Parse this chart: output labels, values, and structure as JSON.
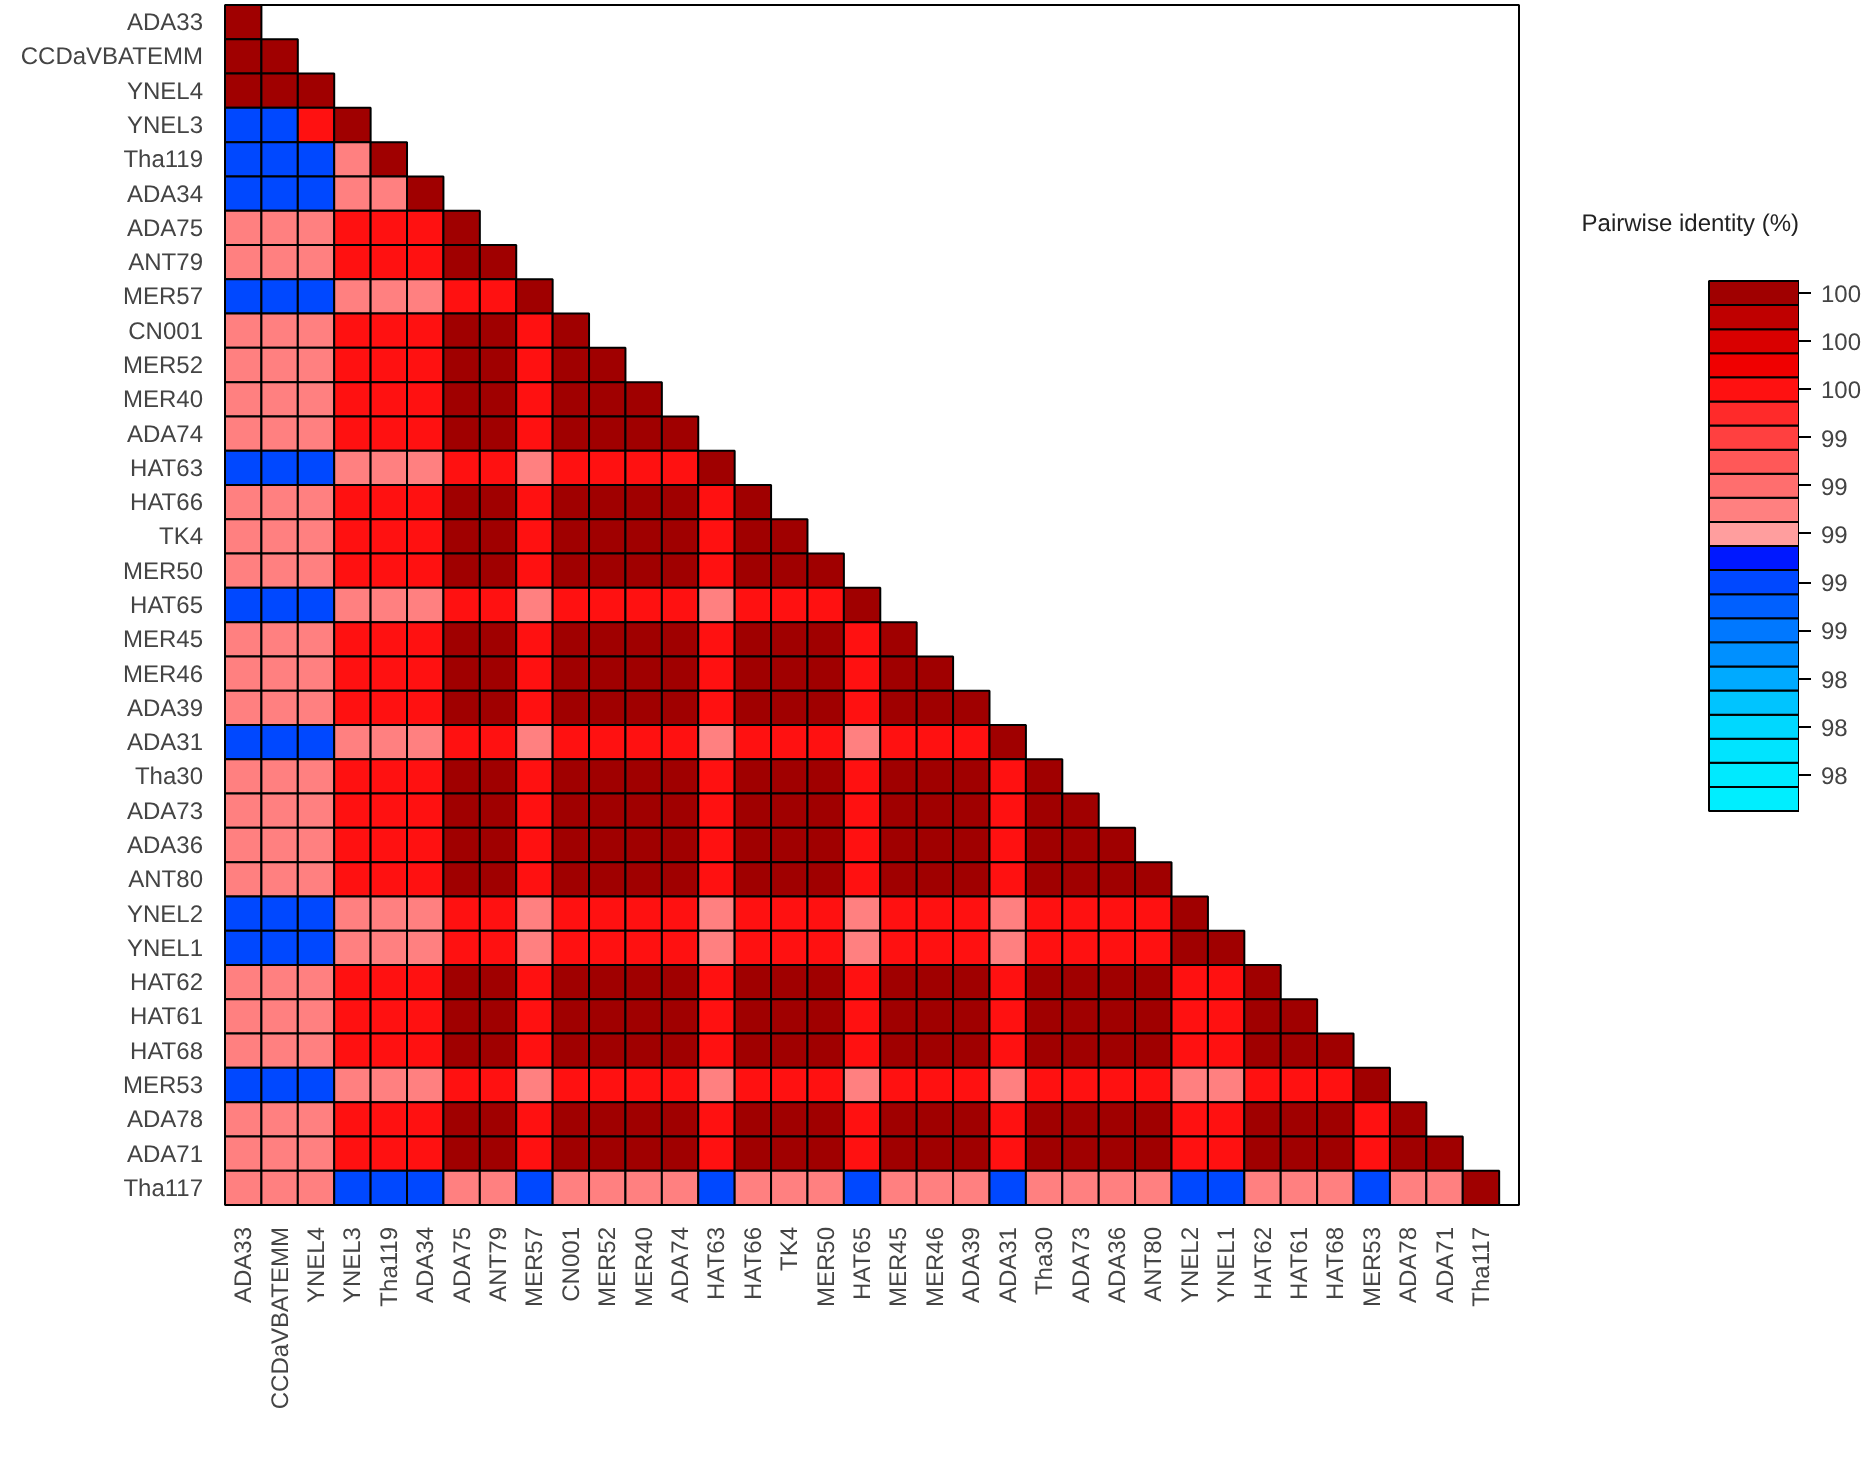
{
  "chart_data": {
    "type": "heatmap",
    "clabel": "Pairwise identity (%)",
    "categories": [
      "ADA33",
      "CCDaVBATEMM",
      "YNEL4",
      "YNEL3",
      "Tha119",
      "ADA34",
      "ADA75",
      "ANT79",
      "MER57",
      "CN001",
      "MER52",
      "MER40",
      "ADA74",
      "HAT63",
      "HAT66",
      "TK4",
      "MER50",
      "HAT65",
      "MER45",
      "MER46",
      "ADA39",
      "ADA31",
      "Tha30",
      "ADA73",
      "ADA36",
      "ANT80",
      "YNEL2",
      "YNEL1",
      "HAT62",
      "HAT61",
      "HAT68",
      "MER53",
      "ADA78",
      "ADA71",
      "Tha117"
    ],
    "y_categories": [
      "ADA33",
      "CCDaVBATEMM",
      "YNEL4",
      "YNEL3",
      "Tha119",
      "ADA34",
      "ADA75",
      "ANT79",
      "MER57",
      "CN001",
      "MER52",
      "MER40",
      "ADA74",
      "HAT63",
      "HAT66",
      "TK4",
      "MER50",
      "HAT65",
      "MER45",
      "MER46",
      "ADA39",
      "ADA31",
      "Tha30",
      "ADA73",
      "ADA36",
      "ANT80",
      "YNEL2",
      "YNEL1",
      "HAT62",
      "HAT61",
      "HAT68",
      "MER53",
      "ADA78",
      "ADA71",
      "Tha117"
    ],
    "cells": [
      [
        100,
        null,
        null,
        null,
        null,
        null,
        null,
        null,
        null,
        null,
        null,
        null,
        null,
        null,
        null,
        null,
        null,
        null,
        null,
        null,
        null,
        null,
        null,
        null,
        null,
        null,
        null,
        null,
        null,
        null,
        null,
        null,
        null,
        null,
        null
      ],
      [
        100,
        100,
        null,
        null,
        null,
        null,
        null,
        null,
        null,
        null,
        null,
        null,
        null,
        null,
        null,
        null,
        null,
        null,
        null,
        null,
        null,
        null,
        null,
        null,
        null,
        null,
        null,
        null,
        null,
        null,
        null,
        null,
        null,
        null,
        null
      ],
      [
        100,
        100,
        100,
        null,
        null,
        null,
        null,
        null,
        null,
        null,
        null,
        null,
        null,
        null,
        null,
        null,
        null,
        null,
        null,
        null,
        null,
        null,
        null,
        null,
        null,
        null,
        null,
        null,
        null,
        null,
        null,
        null,
        null,
        null,
        null
      ],
      [
        98.7,
        98.7,
        99.5,
        100,
        null,
        null,
        null,
        null,
        null,
        null,
        null,
        null,
        null,
        null,
        null,
        null,
        null,
        null,
        null,
        null,
        null,
        null,
        null,
        null,
        null,
        null,
        null,
        null,
        null,
        null,
        null,
        null,
        null,
        null,
        null
      ],
      [
        98.7,
        98.7,
        98.7,
        99,
        100,
        null,
        null,
        null,
        null,
        null,
        null,
        null,
        null,
        null,
        null,
        null,
        null,
        null,
        null,
        null,
        null,
        null,
        null,
        null,
        null,
        null,
        null,
        null,
        null,
        null,
        null,
        null,
        null,
        null,
        null
      ],
      [
        98.7,
        98.7,
        98.7,
        99,
        99,
        100,
        null,
        null,
        null,
        null,
        null,
        null,
        null,
        null,
        null,
        null,
        null,
        null,
        null,
        null,
        null,
        null,
        null,
        null,
        null,
        null,
        null,
        null,
        null,
        null,
        null,
        null,
        null,
        null,
        null
      ],
      [
        99,
        99,
        99,
        99.5,
        99.5,
        99.5,
        100,
        null,
        null,
        null,
        null,
        null,
        null,
        null,
        null,
        null,
        null,
        null,
        null,
        null,
        null,
        null,
        null,
        null,
        null,
        null,
        null,
        null,
        null,
        null,
        null,
        null,
        null,
        null,
        null
      ],
      [
        99,
        99,
        99,
        99.5,
        99.5,
        99.5,
        100,
        100,
        null,
        null,
        null,
        null,
        null,
        null,
        null,
        null,
        null,
        null,
        null,
        null,
        null,
        null,
        null,
        null,
        null,
        null,
        null,
        null,
        null,
        null,
        null,
        null,
        null,
        null,
        null
      ],
      [
        98.7,
        98.7,
        98.7,
        99,
        99,
        99,
        99.5,
        99.5,
        100,
        null,
        null,
        null,
        null,
        null,
        null,
        null,
        null,
        null,
        null,
        null,
        null,
        null,
        null,
        null,
        null,
        null,
        null,
        null,
        null,
        null,
        null,
        null,
        null,
        null,
        null
      ],
      [
        99,
        99,
        99,
        99.5,
        99.5,
        99.5,
        100,
        100,
        99.5,
        100,
        null,
        null,
        null,
        null,
        null,
        null,
        null,
        null,
        null,
        null,
        null,
        null,
        null,
        null,
        null,
        null,
        null,
        null,
        null,
        null,
        null,
        null,
        null,
        null,
        null
      ],
      [
        99,
        99,
        99,
        99.5,
        99.5,
        99.5,
        100,
        100,
        99.5,
        100,
        100,
        null,
        null,
        null,
        null,
        null,
        null,
        null,
        null,
        null,
        null,
        null,
        null,
        null,
        null,
        null,
        null,
        null,
        null,
        null,
        null,
        null,
        null,
        null,
        null
      ],
      [
        99,
        99,
        99,
        99.5,
        99.5,
        99.5,
        100,
        100,
        99.5,
        100,
        100,
        100,
        null,
        null,
        null,
        null,
        null,
        null,
        null,
        null,
        null,
        null,
        null,
        null,
        null,
        null,
        null,
        null,
        null,
        null,
        null,
        null,
        null,
        null,
        null
      ],
      [
        99,
        99,
        99,
        99.5,
        99.5,
        99.5,
        100,
        100,
        99.5,
        100,
        100,
        100,
        100,
        null,
        null,
        null,
        null,
        null,
        null,
        null,
        null,
        null,
        null,
        null,
        null,
        null,
        null,
        null,
        null,
        null,
        null,
        null,
        null,
        null,
        null
      ],
      [
        98.7,
        98.7,
        98.7,
        99,
        99,
        99,
        99.5,
        99.5,
        99,
        99.5,
        99.5,
        99.5,
        99.5,
        100,
        null,
        null,
        null,
        null,
        null,
        null,
        null,
        null,
        null,
        null,
        null,
        null,
        null,
        null,
        null,
        null,
        null,
        null,
        null,
        null,
        null
      ],
      [
        99,
        99,
        99,
        99.5,
        99.5,
        99.5,
        100,
        100,
        99.5,
        100,
        100,
        100,
        100,
        99.5,
        100,
        null,
        null,
        null,
        null,
        null,
        null,
        null,
        null,
        null,
        null,
        null,
        null,
        null,
        null,
        null,
        null,
        null,
        null,
        null,
        null
      ],
      [
        99,
        99,
        99,
        99.5,
        99.5,
        99.5,
        100,
        100,
        99.5,
        100,
        100,
        100,
        100,
        99.5,
        100,
        100,
        null,
        null,
        null,
        null,
        null,
        null,
        null,
        null,
        null,
        null,
        null,
        null,
        null,
        null,
        null,
        null,
        null,
        null,
        null
      ],
      [
        99,
        99,
        99,
        99.5,
        99.5,
        99.5,
        100,
        100,
        99.5,
        100,
        100,
        100,
        100,
        99.5,
        100,
        100,
        100,
        null,
        null,
        null,
        null,
        null,
        null,
        null,
        null,
        null,
        null,
        null,
        null,
        null,
        null,
        null,
        null,
        null,
        null
      ],
      [
        98.7,
        98.7,
        98.7,
        99,
        99,
        99,
        99.5,
        99.5,
        99,
        99.5,
        99.5,
        99.5,
        99.5,
        99,
        99.5,
        99.5,
        99.5,
        100,
        null,
        null,
        null,
        null,
        null,
        null,
        null,
        null,
        null,
        null,
        null,
        null,
        null,
        null,
        null,
        null,
        null
      ],
      [
        99,
        99,
        99,
        99.5,
        99.5,
        99.5,
        100,
        100,
        99.5,
        100,
        100,
        100,
        100,
        99.5,
        100,
        100,
        100,
        99.5,
        100,
        null,
        null,
        null,
        null,
        null,
        null,
        null,
        null,
        null,
        null,
        null,
        null,
        null,
        null,
        null,
        null
      ],
      [
        99,
        99,
        99,
        99.5,
        99.5,
        99.5,
        100,
        100,
        99.5,
        100,
        100,
        100,
        100,
        99.5,
        100,
        100,
        100,
        99.5,
        100,
        100,
        null,
        null,
        null,
        null,
        null,
        null,
        null,
        null,
        null,
        null,
        null,
        null,
        null,
        null,
        null
      ],
      [
        99,
        99,
        99,
        99.5,
        99.5,
        99.5,
        100,
        100,
        99.5,
        100,
        100,
        100,
        100,
        99.5,
        100,
        100,
        100,
        99.5,
        100,
        100,
        100,
        null,
        null,
        null,
        null,
        null,
        null,
        null,
        null,
        null,
        null,
        null,
        null,
        null,
        null
      ],
      [
        98.7,
        98.7,
        98.7,
        99,
        99,
        99,
        99.5,
        99.5,
        99,
        99.5,
        99.5,
        99.5,
        99.5,
        99,
        99.5,
        99.5,
        99.5,
        99,
        99.5,
        99.5,
        99.5,
        100,
        null,
        null,
        null,
        null,
        null,
        null,
        null,
        null,
        null,
        null,
        null,
        null,
        null
      ],
      [
        99,
        99,
        99,
        99.5,
        99.5,
        99.5,
        100,
        100,
        99.5,
        100,
        100,
        100,
        100,
        99.5,
        100,
        100,
        100,
        99.5,
        100,
        100,
        100,
        99.5,
        100,
        null,
        null,
        null,
        null,
        null,
        null,
        null,
        null,
        null,
        null,
        null,
        null
      ],
      [
        99,
        99,
        99,
        99.5,
        99.5,
        99.5,
        100,
        100,
        99.5,
        100,
        100,
        100,
        100,
        99.5,
        100,
        100,
        100,
        99.5,
        100,
        100,
        100,
        99.5,
        100,
        100,
        null,
        null,
        null,
        null,
        null,
        null,
        null,
        null,
        null,
        null,
        null
      ],
      [
        99,
        99,
        99,
        99.5,
        99.5,
        99.5,
        100,
        100,
        99.5,
        100,
        100,
        100,
        100,
        99.5,
        100,
        100,
        100,
        99.5,
        100,
        100,
        100,
        99.5,
        100,
        100,
        100,
        null,
        null,
        null,
        null,
        null,
        null,
        null,
        null,
        null,
        null
      ],
      [
        99,
        99,
        99,
        99.5,
        99.5,
        99.5,
        100,
        100,
        99.5,
        100,
        100,
        100,
        100,
        99.5,
        100,
        100,
        100,
        99.5,
        100,
        100,
        100,
        99.5,
        100,
        100,
        100,
        100,
        null,
        null,
        null,
        null,
        null,
        null,
        null,
        null,
        null
      ],
      [
        98.7,
        98.7,
        98.7,
        99,
        99,
        99,
        99.5,
        99.5,
        99,
        99.5,
        99.5,
        99.5,
        99.5,
        99,
        99.5,
        99.5,
        99.5,
        99,
        99.5,
        99.5,
        99.5,
        99,
        99.5,
        99.5,
        99.5,
        99.5,
        100,
        null,
        null,
        null,
        null,
        null,
        null,
        null,
        null
      ],
      [
        98.7,
        98.7,
        98.7,
        99,
        99,
        99,
        99.5,
        99.5,
        99,
        99.5,
        99.5,
        99.5,
        99.5,
        99,
        99.5,
        99.5,
        99.5,
        99,
        99.5,
        99.5,
        99.5,
        99,
        99.5,
        99.5,
        99.5,
        99.5,
        100,
        100,
        null,
        null,
        null,
        null,
        null,
        null,
        null
      ],
      [
        99,
        99,
        99,
        99.5,
        99.5,
        99.5,
        100,
        100,
        99.5,
        100,
        100,
        100,
        100,
        99.5,
        100,
        100,
        100,
        99.5,
        100,
        100,
        100,
        99.5,
        100,
        100,
        100,
        100,
        99.5,
        99.5,
        100,
        null,
        null,
        null,
        null,
        null,
        null
      ],
      [
        99,
        99,
        99,
        99.5,
        99.5,
        99.5,
        100,
        100,
        99.5,
        100,
        100,
        100,
        100,
        99.5,
        100,
        100,
        100,
        99.5,
        100,
        100,
        100,
        99.5,
        100,
        100,
        100,
        100,
        99.5,
        99.5,
        100,
        100,
        null,
        null,
        null,
        null,
        null
      ],
      [
        99,
        99,
        99,
        99.5,
        99.5,
        99.5,
        100,
        100,
        99.5,
        100,
        100,
        100,
        100,
        99.5,
        100,
        100,
        100,
        99.5,
        100,
        100,
        100,
        99.5,
        100,
        100,
        100,
        100,
        99.5,
        99.5,
        100,
        100,
        100,
        null,
        null,
        null,
        null
      ],
      [
        98.7,
        98.7,
        98.7,
        99,
        99,
        99,
        99.5,
        99.5,
        99,
        99.5,
        99.5,
        99.5,
        99.5,
        99,
        99.5,
        99.5,
        99.5,
        99,
        99.5,
        99.5,
        99.5,
        99,
        99.5,
        99.5,
        99.5,
        99.5,
        99,
        99,
        99.5,
        99.5,
        99.5,
        100,
        null,
        null,
        null
      ],
      [
        99,
        99,
        99,
        99.5,
        99.5,
        99.5,
        100,
        100,
        99.5,
        100,
        100,
        100,
        100,
        99.5,
        100,
        100,
        100,
        99.5,
        100,
        100,
        100,
        99.5,
        100,
        100,
        100,
        100,
        99.5,
        99.5,
        100,
        100,
        100,
        99.5,
        100,
        null,
        null
      ],
      [
        99,
        99,
        99,
        99.5,
        99.5,
        99.5,
        100,
        100,
        99.5,
        100,
        100,
        100,
        100,
        99.5,
        100,
        100,
        100,
        99.5,
        100,
        100,
        100,
        99.5,
        100,
        100,
        100,
        100,
        99.5,
        99.5,
        100,
        100,
        100,
        99.5,
        100,
        100,
        null
      ],
      [
        99,
        99,
        99,
        98.7,
        98.7,
        98.7,
        99,
        99,
        98.7,
        99,
        99,
        99,
        99,
        98.7,
        99,
        99,
        99,
        98.7,
        99,
        99,
        99,
        98.7,
        99,
        99,
        99,
        99,
        98.7,
        98.7,
        99,
        99,
        99,
        98.7,
        99,
        99,
        100
      ]
    ],
    "clim": [
      97.8,
      100
    ],
    "cticks": [
      {
        "value": 99.95,
        "label": "100"
      },
      {
        "value": 99.75,
        "label": "100"
      },
      {
        "value": 99.55,
        "label": "100"
      },
      {
        "value": 99.35,
        "label": "99"
      },
      {
        "value": 99.15,
        "label": "99"
      },
      {
        "value": 98.95,
        "label": "99"
      },
      {
        "value": 98.75,
        "label": "99"
      },
      {
        "value": 98.55,
        "label": "99"
      },
      {
        "value": 98.35,
        "label": "98"
      },
      {
        "value": 98.15,
        "label": "98"
      },
      {
        "value": 97.95,
        "label": "98"
      }
    ],
    "colors": [
      "#00eeff",
      "#00eaff",
      "#00e4ff",
      "#00d8ff",
      "#00c4ff",
      "#00aaff",
      "#0090ff",
      "#0078ff",
      "#0060ff",
      "#0048ff",
      "#0018ff",
      "#ff9e9e",
      "#ff8080",
      "#ff6e6e",
      "#ff5858",
      "#ff4040",
      "#ff2a2a",
      "#ff1111",
      "#f00000",
      "#d90000",
      "#bf0000",
      "#a00000"
    ]
  }
}
